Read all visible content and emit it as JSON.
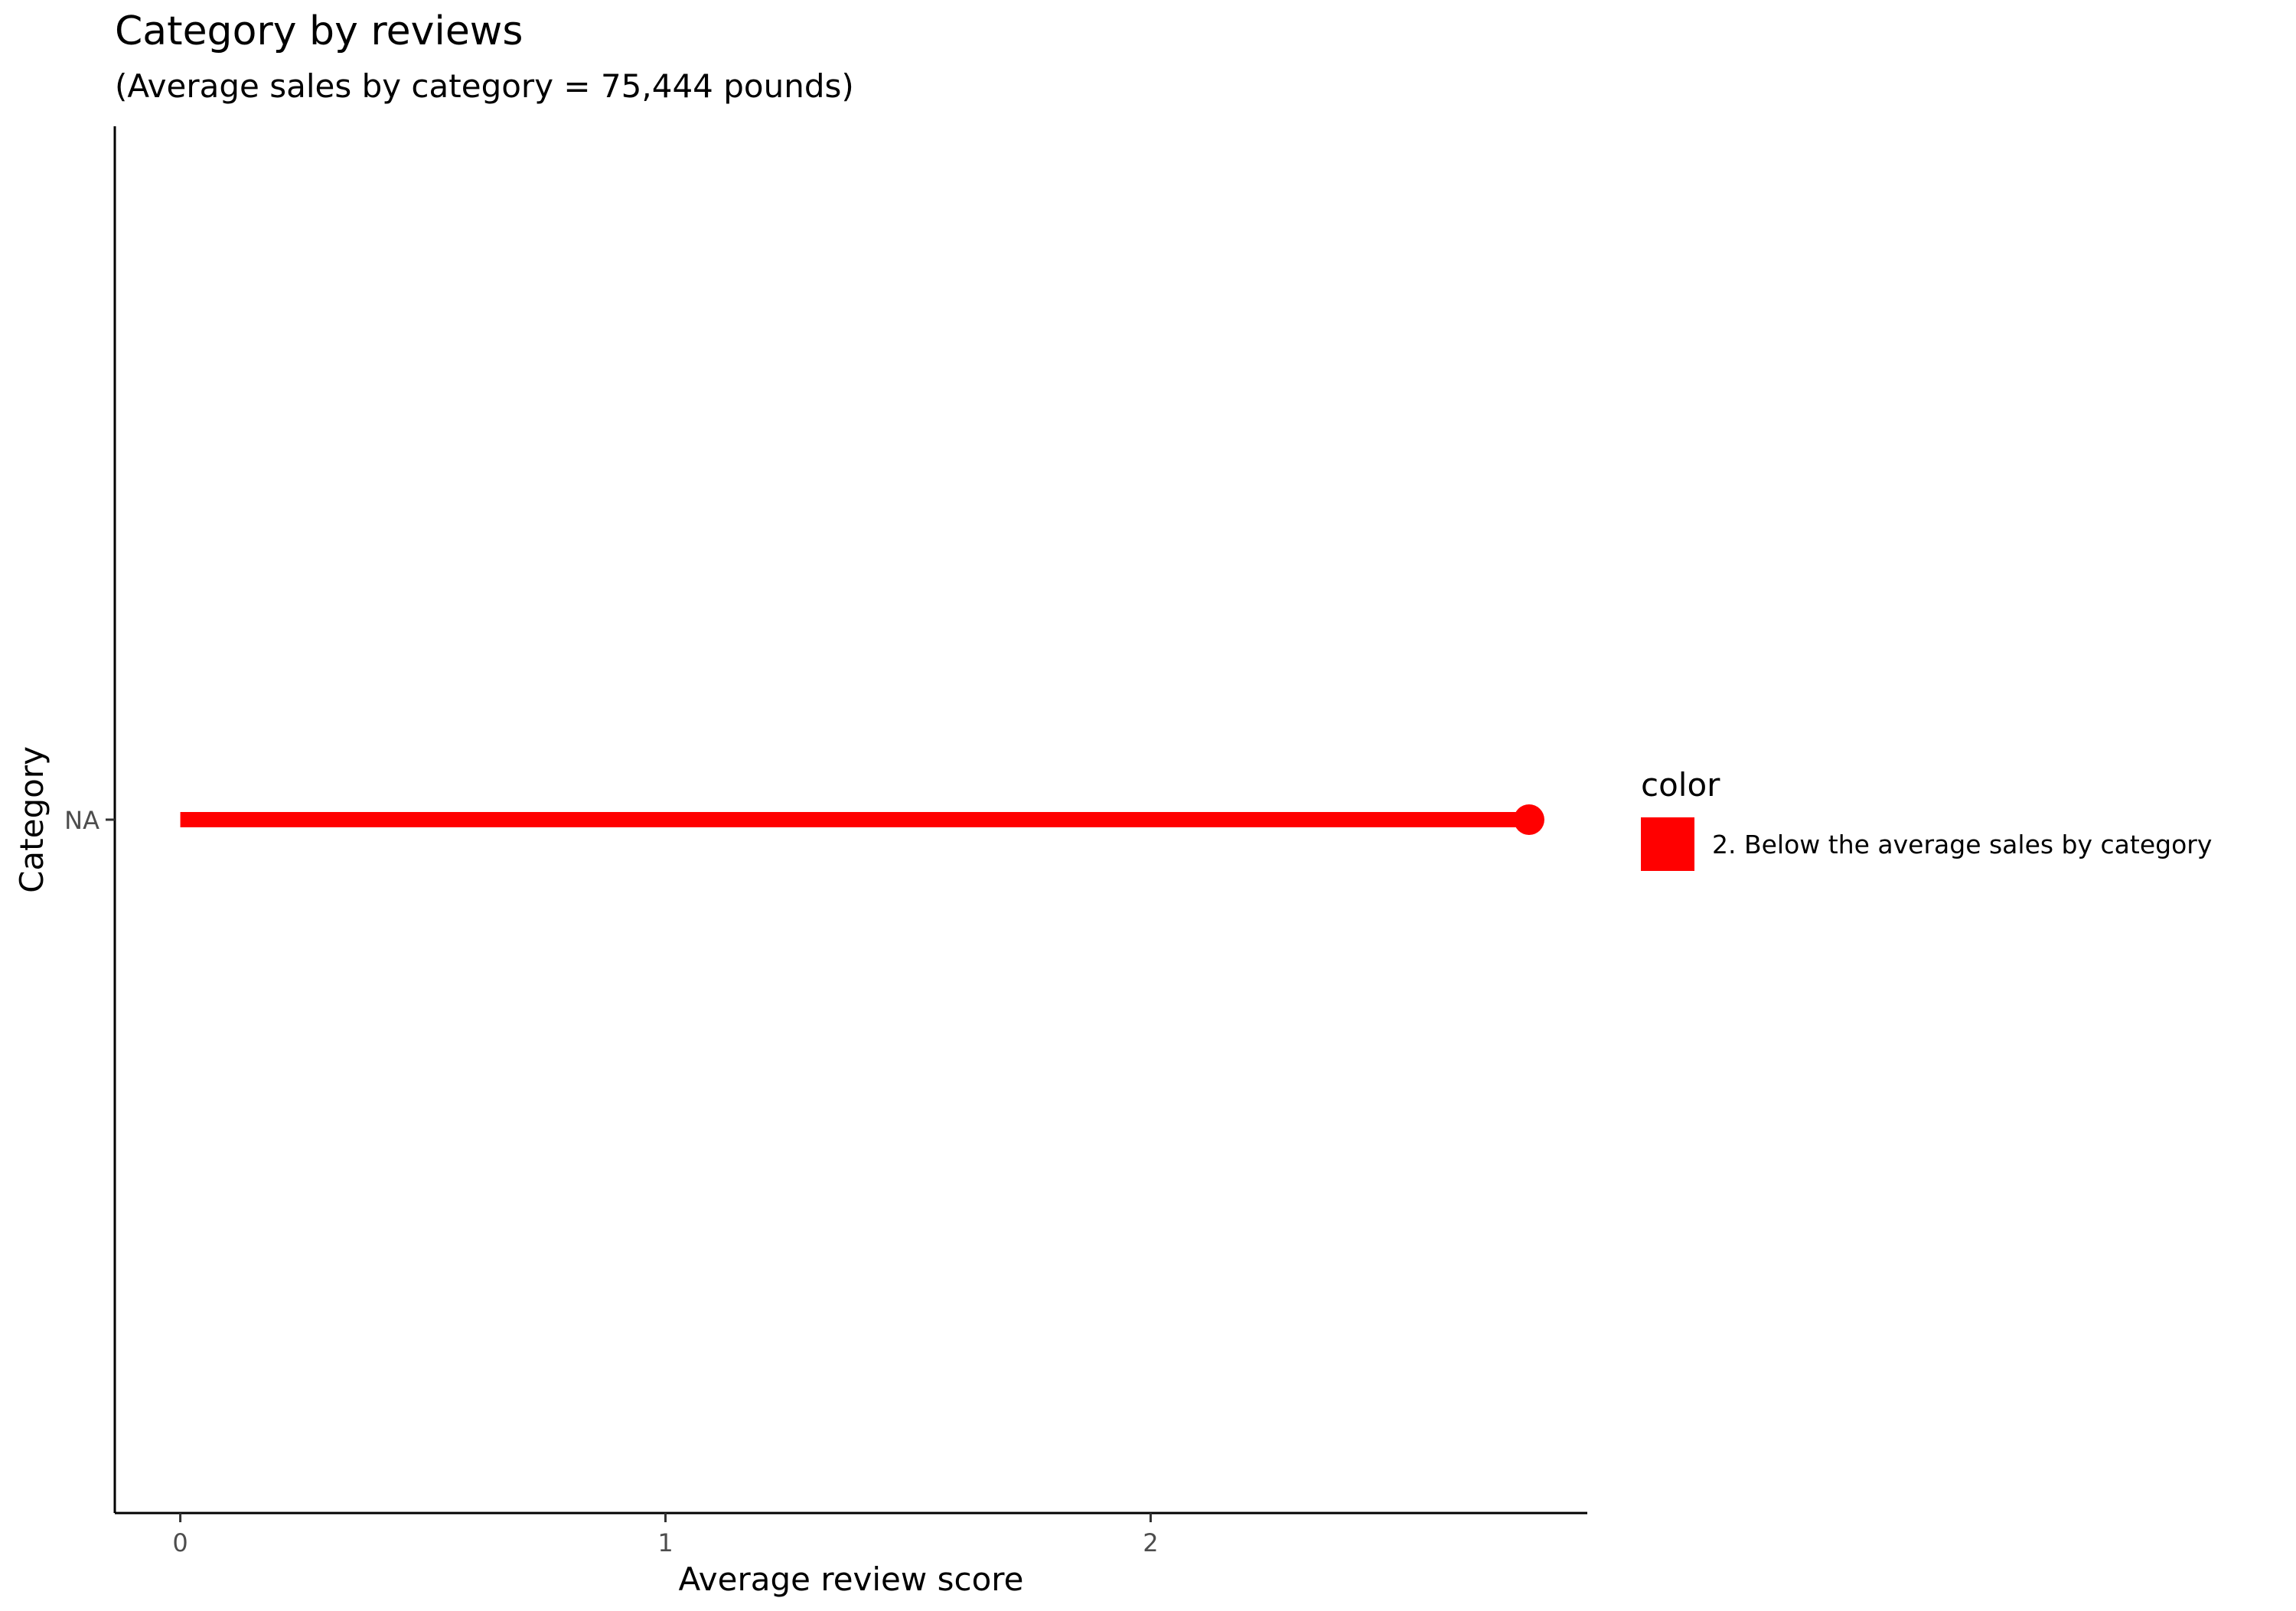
{
  "chart_data": {
    "type": "lollipop",
    "title": "Category by reviews",
    "subtitle": "(Average sales by category = 75,444 pounds)",
    "xlabel": "Average review score",
    "ylabel": "Category",
    "xlim": [
      -0.135,
      2.9
    ],
    "xticks": [
      0,
      1,
      2
    ],
    "categories": [
      "NA"
    ],
    "series": [
      {
        "color_group": "2. Below the average sales by category",
        "color": "#ff0000",
        "values": [
          2.78
        ]
      }
    ],
    "legend": {
      "title": "color",
      "position": "right",
      "entries": [
        {
          "label": "2. Below the average sales by category",
          "color": "#ff0000"
        }
      ]
    },
    "grid": false
  }
}
